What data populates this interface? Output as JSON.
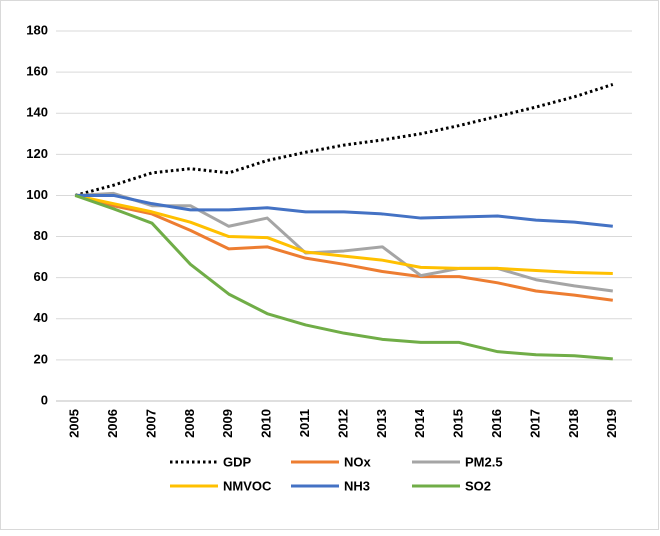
{
  "chart_data": {
    "type": "line",
    "categories": [
      "2005",
      "2006",
      "2007",
      "2008",
      "2009",
      "2010",
      "2011",
      "2012",
      "2013",
      "2014",
      "2015",
      "2016",
      "2017",
      "2018",
      "2019"
    ],
    "series": [
      {
        "name": "GDP",
        "color": "#000000",
        "style": "dotted",
        "values": [
          100,
          105,
          111,
          113,
          111,
          117,
          121,
          124.5,
          127,
          130,
          134,
          138.5,
          143,
          148,
          154
        ]
      },
      {
        "name": "NOx",
        "color": "#ED7D31",
        "style": "solid",
        "values": [
          100,
          95,
          91,
          83,
          74,
          75,
          69.5,
          66.5,
          63,
          60.5,
          60.5,
          57.5,
          53.5,
          51.5,
          49
        ]
      },
      {
        "name": "PM2.5",
        "color": "#A5A5A5",
        "style": "solid",
        "values": [
          100,
          101,
          95,
          95,
          85,
          89,
          72,
          73,
          75,
          61,
          64.5,
          64.5,
          59,
          56,
          53.5
        ]
      },
      {
        "name": "NMVOC",
        "color": "#FFC000",
        "style": "solid",
        "values": [
          100,
          96,
          92,
          87,
          80,
          79.5,
          72.5,
          70.5,
          68.5,
          65,
          64.5,
          64.5,
          63.5,
          62.5,
          62
        ]
      },
      {
        "name": "NH3",
        "color": "#4472C4",
        "style": "solid",
        "values": [
          100,
          100,
          96,
          93,
          93,
          94,
          92,
          92,
          91,
          89,
          89.5,
          90,
          88,
          87,
          85
        ]
      },
      {
        "name": "SO2",
        "color": "#70AD47",
        "style": "solid",
        "values": [
          100,
          93.5,
          86.5,
          66.5,
          52,
          42.5,
          37,
          33,
          30,
          28.5,
          28.5,
          24,
          22.5,
          22,
          20.5
        ]
      }
    ],
    "ylim": [
      0,
      180
    ],
    "yticks": [
      0,
      20,
      40,
      60,
      80,
      100,
      120,
      140,
      160,
      180
    ],
    "grid": true,
    "legend": "bottom"
  }
}
